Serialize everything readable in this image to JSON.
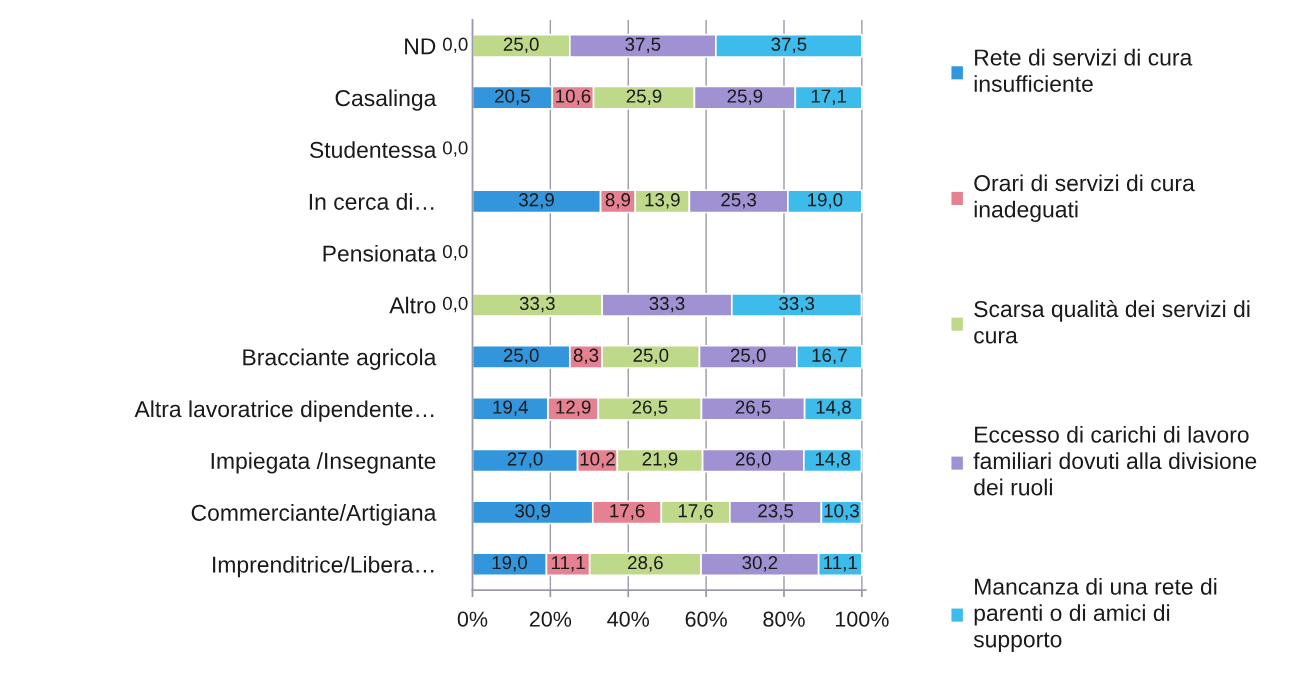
{
  "chart_data": {
    "type": "bar",
    "orientation": "horizontal",
    "stacked": true,
    "categories": [
      "ND",
      "Casalinga",
      "Studentessa",
      "In cerca di…",
      "Pensionata",
      "Altro",
      "Bracciante agricola",
      "Altra lavoratrice dipendente…",
      "Impiegata /Insegnante",
      "Commerciante/Artigiana",
      "Imprenditrice/Libera…"
    ],
    "series": [
      {
        "name": "Rete di servizi di cura\ninsufficiente",
        "color": "#3396dc",
        "values": [
          0,
          20.5,
          0,
          32.9,
          0,
          0,
          25.0,
          19.4,
          27.0,
          30.9,
          19.0
        ],
        "value_labels": [
          null,
          "20,5",
          "0,0",
          "32,9",
          "0,0",
          null,
          "25,0",
          "19,4",
          "27,0",
          "30,9",
          "19,0"
        ]
      },
      {
        "name": "Orari di servizi di cura\ninadeguati",
        "color": "#e58190",
        "values": [
          0,
          10.6,
          0,
          8.9,
          0,
          0,
          8.3,
          12.9,
          10.2,
          17.6,
          11.1
        ],
        "value_labels": [
          null,
          "10,6",
          null,
          "8,9",
          null,
          null,
          "8,3",
          "12,9",
          "10,2",
          "17,6",
          "11,1"
        ]
      },
      {
        "name": "Scarsa qualità dei servizi di\ncura",
        "color": "#bfd98a",
        "values": [
          25.0,
          25.9,
          0,
          13.9,
          0,
          33.3,
          25.0,
          26.5,
          21.9,
          17.6,
          28.6
        ],
        "value_labels": [
          "25,0",
          "25,9",
          null,
          "13,9",
          null,
          "33,3",
          "25,0",
          "26,5",
          "21,9",
          "17,6",
          "28,6"
        ]
      },
      {
        "name": "Eccesso di carichi di lavoro\nfamiliari dovuti alla divisione\ndei ruoli",
        "color": "#a091d2",
        "values": [
          37.5,
          25.9,
          0,
          25.3,
          0,
          33.3,
          25.0,
          26.5,
          26.0,
          23.5,
          30.2
        ],
        "value_labels": [
          "37,5",
          "25,9",
          null,
          "25,3",
          null,
          "33,3",
          "25,0",
          "26,5",
          "26,0",
          "23,5",
          "30,2"
        ]
      },
      {
        "name": "Mancanza di una rete di\nparenti o di amici di\nsupporto",
        "color": "#3dbbea",
        "values": [
          37.5,
          17.1,
          0,
          19.0,
          0,
          33.3,
          16.7,
          14.8,
          14.8,
          10.3,
          11.1
        ],
        "value_labels": [
          "37,5",
          "17,1",
          null,
          "19,0",
          null,
          "33,3",
          "16,7",
          "14,8",
          "14,8",
          "10,3",
          "11,1"
        ]
      }
    ],
    "annotations": [
      {
        "text": "0,0",
        "x": 0,
        "y": "ND"
      },
      {
        "text": "0,0",
        "x": 0,
        "y": "Altro"
      }
    ],
    "xlim": [
      0,
      101
    ],
    "xticks": [
      {
        "value": 0,
        "label": "0%"
      },
      {
        "value": 20,
        "label": "20%"
      },
      {
        "value": 40,
        "label": "40%"
      },
      {
        "value": 60,
        "label": "60%"
      },
      {
        "value": 80,
        "label": "80%"
      },
      {
        "value": 100,
        "label": "100%"
      }
    ],
    "grid": "x",
    "legend": "right"
  }
}
